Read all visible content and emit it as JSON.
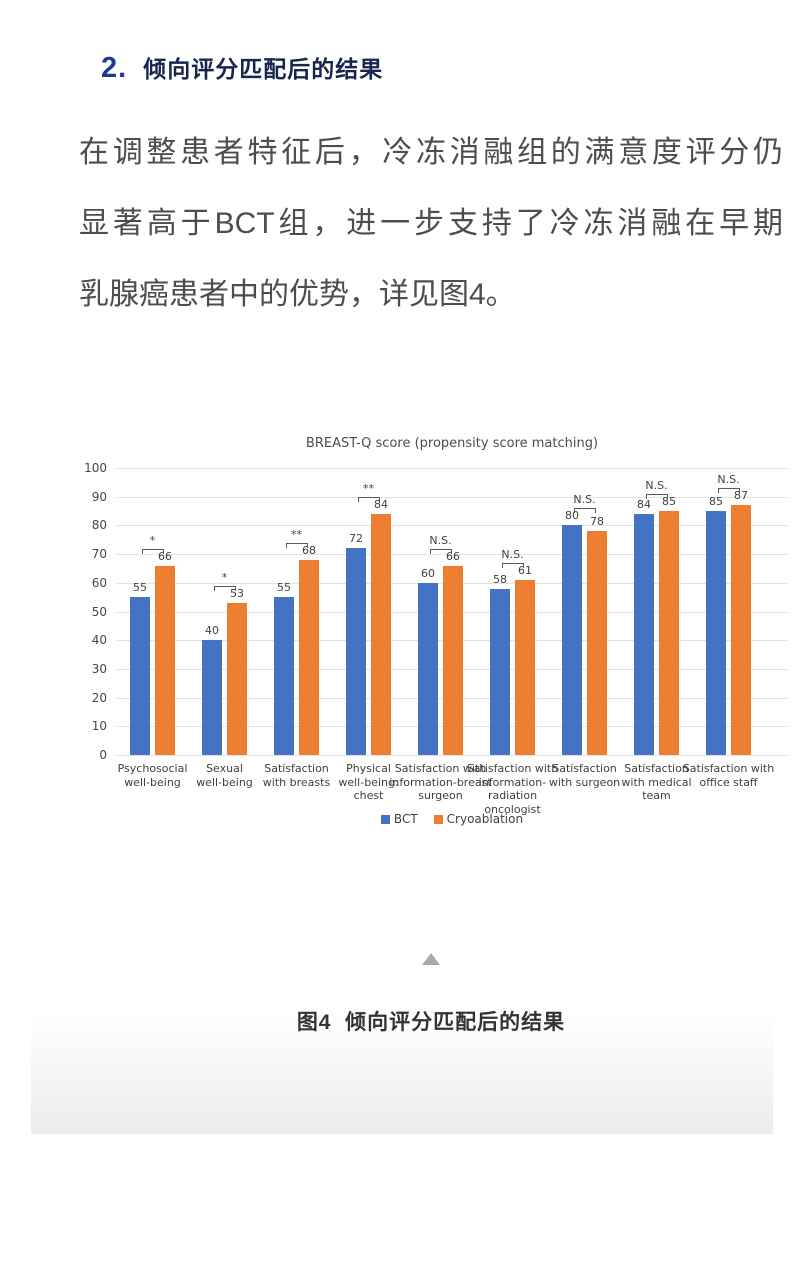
{
  "page": {
    "background_color": "#ffffff",
    "card_fade_color": "#ebebeb"
  },
  "heading": {
    "number": "2.",
    "text": "倾向评分匹配后的结果",
    "number_color": "#1f3a93",
    "text_color": "#19254d"
  },
  "paragraph": {
    "lines": [
      "在调整患者特征后，冷冻消融组的满意度评分仍",
      "显著高于BCT组，进一步支持了冷冻消融在早期",
      "乳腺癌患者中的优势，详见图4。"
    ]
  },
  "chart_data": {
    "type": "bar",
    "title": "BREAST-Q score (propensity score matching)",
    "categories": [
      "Psychosocial\nwell-being",
      "Sexual\nwell-being",
      "Satisfaction\nwith breasts",
      "Physical\nwell-being:\nchest",
      "Satisfaction with\ninformation-breast\nsurgeon",
      "Satisfaction with\ninformation-\nradiation\noncologist",
      "Satisfaction\nwith surgeon",
      "Satisfaction\nwith medical\nteam",
      "Satisfaction with\noffice staff"
    ],
    "series": [
      {
        "name": "BCT",
        "color": "#4472c4",
        "values": [
          55,
          40,
          55,
          72,
          60,
          58,
          80,
          84,
          85
        ]
      },
      {
        "name": "Cryoablation",
        "color": "#ed7d31",
        "values": [
          66,
          53,
          68,
          84,
          66,
          61,
          78,
          85,
          87
        ]
      }
    ],
    "significance": [
      "*",
      "*",
      "**",
      "**",
      "N.S.",
      "N.S.",
      "N.S.",
      "N.S.",
      "N.S."
    ],
    "xlabel": "",
    "ylabel": "",
    "ylim": [
      0,
      100
    ],
    "yticks": [
      0,
      10,
      20,
      30,
      40,
      50,
      60,
      70,
      80,
      90,
      100
    ],
    "grid": true,
    "legend_position": "bottom"
  },
  "figure": {
    "caption": "图4  倾向评分匹配后的结果"
  }
}
